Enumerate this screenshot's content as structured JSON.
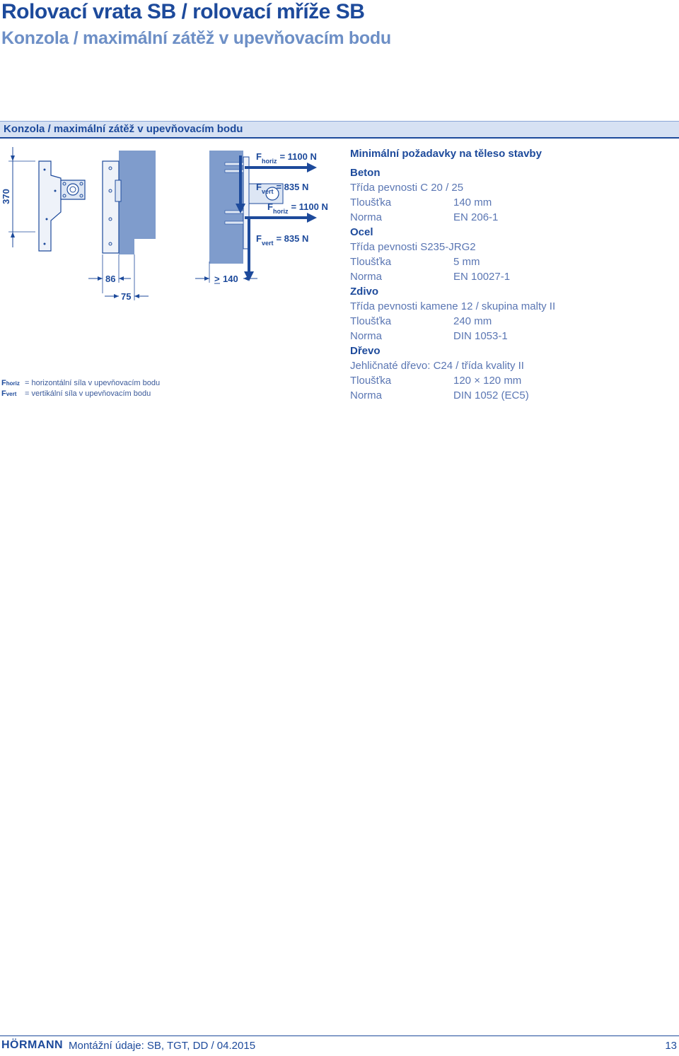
{
  "header": {
    "title": "Rolovací vrata SB / rolovací mříže SB",
    "subtitle": "Konzola / maximální zátěž v upevňovacím bodu"
  },
  "section": {
    "title": "Konzola / maximální zátěž v upevňovacím bodu"
  },
  "diagram": {
    "dim_height": "370",
    "dim_width_1": "86",
    "dim_width_2": "75",
    "dim_min": "140",
    "dim_min_prefix": ">",
    "force_symbol": "F",
    "horiz_sub": "horiz",
    "vert_sub": "vert",
    "force_horiz_value": "= 1100 N",
    "force_vert_value": "= 835 N"
  },
  "legend": {
    "items": [
      {
        "symbol": "F",
        "sub": "horiz",
        "text": "= horizontální síla v upevňovacím bodu"
      },
      {
        "symbol": "F",
        "sub": "vert",
        "text": "= vertikální síla v upevňovacím bodu"
      }
    ]
  },
  "requirements": {
    "heading": "Minimální požadavky na těleso stavby",
    "groups": [
      {
        "name": "Beton",
        "class_line": "Třída pevnosti C 20 / 25",
        "rows": [
          {
            "label": "Tloušťka",
            "value": "140 mm"
          },
          {
            "label": "Norma",
            "value": "EN 206-1"
          }
        ]
      },
      {
        "name": "Ocel",
        "class_line": "Třída pevnosti S235-JRG2",
        "rows": [
          {
            "label": "Tloušťka",
            "value": "5 mm"
          },
          {
            "label": "Norma",
            "value": "EN 10027-1"
          }
        ]
      },
      {
        "name": "Zdivo",
        "class_line": "Třída pevnosti kamene 12 / skupina malty II",
        "rows": [
          {
            "label": "Tloušťka",
            "value": "240 mm"
          },
          {
            "label": "Norma",
            "value": "DIN 1053-1"
          }
        ]
      },
      {
        "name": "Dřevo",
        "class_line": "Jehličnaté dřevo: C24 / třída kvality II",
        "rows": [
          {
            "label": "Tloušťka",
            "value": "120 × 120 mm"
          },
          {
            "label": "Norma",
            "value": "DIN 1052 (EC5)"
          }
        ]
      }
    ]
  },
  "footer": {
    "logo": "HÖRMANN",
    "text": "Montážní údaje: SB, TGT, DD / 04.2015",
    "page": "13"
  }
}
